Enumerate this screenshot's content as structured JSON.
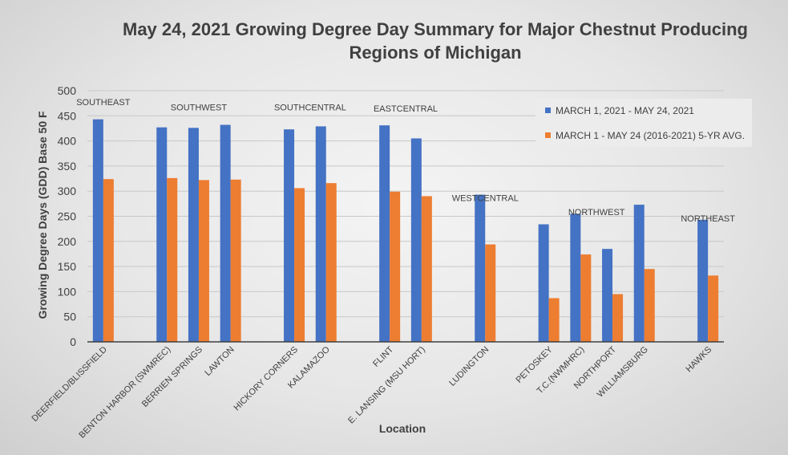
{
  "chart_data": {
    "type": "bar",
    "title_lines": [
      "May 24, 2021 Growing Degree Day Summary for Major Chestnut Producing",
      "Regions of Michigan"
    ],
    "xlabel": "Location",
    "ylabel": "Growing Degree Days (GDD) Base 50 F",
    "ylim": [
      0,
      500
    ],
    "yticks": [
      0,
      50,
      100,
      150,
      200,
      250,
      300,
      350,
      400,
      450,
      500
    ],
    "grid": true,
    "legend_position": "top-right",
    "categories": [
      "DEERFIELD/BLISSFIELD",
      "",
      "BENTON HARBOR (SWMREC)",
      "BERRIEN SPRINGS",
      "LAWTON",
      "",
      "HICKORY CORNERS",
      "KALAMAZOO",
      "",
      "FLINT",
      "E. LANSING (MSU HORT)",
      "",
      "LUDINGTON",
      "",
      "PETOSKEY",
      "T.C.(NWMHRC)",
      "NORTHPORT",
      "WILLIAMSBURG",
      "",
      "HAWKS"
    ],
    "series": [
      {
        "name": "MARCH 1, 2021 - MAY 24, 2021",
        "color": "#4472C4",
        "values": [
          443,
          null,
          427,
          426,
          432,
          null,
          423,
          429,
          null,
          431,
          405,
          null,
          293,
          null,
          234,
          255,
          185,
          273,
          null,
          243
        ]
      },
      {
        "name": "MARCH 1 - MAY 24 (2016-2021) 5-YR AVG.",
        "color": "#ED7D31",
        "values": [
          324,
          null,
          326,
          322,
          323,
          null,
          306,
          316,
          null,
          299,
          290,
          null,
          194,
          null,
          87,
          174,
          95,
          145,
          null,
          132
        ]
      }
    ],
    "regions": [
      {
        "label": "SOUTHEAST",
        "first": 0,
        "last": 0,
        "level": 500
      },
      {
        "label": "SOUTHWEST",
        "first": 2,
        "last": 4,
        "level": 490
      },
      {
        "label": "SOUTHCENTRAL",
        "first": 6,
        "last": 7,
        "level": 490
      },
      {
        "label": "EASTCENTRAL",
        "first": 9,
        "last": 10,
        "level": 487
      },
      {
        "label": "WESTCENTRAL",
        "first": 12,
        "last": 12,
        "level": 309
      },
      {
        "label": "NORTHWEST",
        "first": 14,
        "last": 17,
        "level": 281
      },
      {
        "label": "NORTHEAST",
        "first": 19,
        "last": 19,
        "level": 268
      }
    ],
    "colors": {
      "grid": "#c8c8c8",
      "axis": "#404040",
      "legend_box": "#ececec"
    }
  }
}
